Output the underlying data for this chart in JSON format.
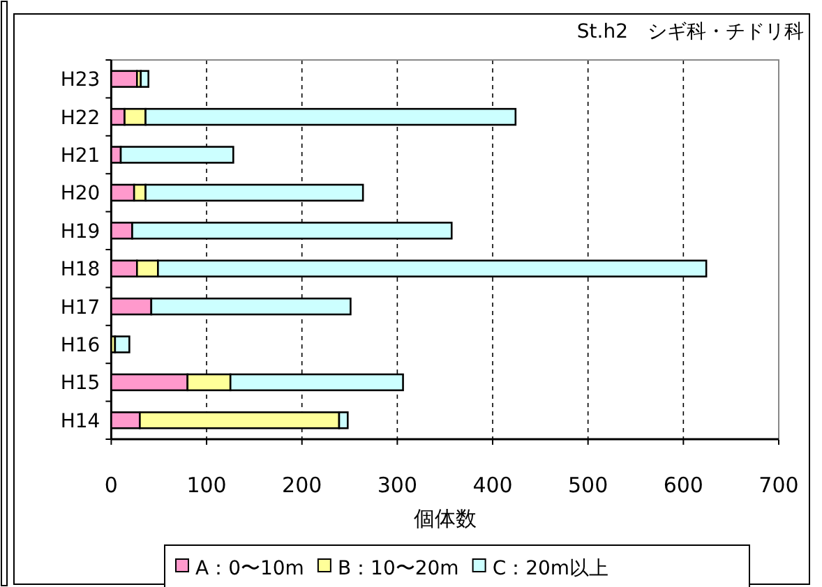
{
  "chart_data": {
    "type": "bar",
    "orientation": "horizontal",
    "stacked": true,
    "title": "St.h2　シギ科・チドリ科",
    "xlabel": "個体数",
    "categories": [
      "H23",
      "H22",
      "H21",
      "H20",
      "H19",
      "H18",
      "H17",
      "H16",
      "H15",
      "H14"
    ],
    "series": [
      {
        "name": "A：0〜10m",
        "color": "#ff99cc",
        "values": [
          27,
          14,
          10,
          24,
          22,
          27,
          42,
          null,
          80,
          30
        ]
      },
      {
        "name": "B：10〜20m",
        "color": "#ffff99",
        "values": [
          4,
          22,
          0,
          12,
          0,
          22,
          0,
          4,
          45,
          209
        ]
      },
      {
        "name": "C：20m以上",
        "color": "#ccffff",
        "values": [
          8,
          388,
          118,
          228,
          335,
          575,
          209,
          15,
          181,
          9
        ]
      }
    ],
    "xlim": [
      0,
      700
    ],
    "xticks": [
      0,
      100,
      200,
      300,
      400,
      500,
      600,
      700
    ],
    "grid": "x",
    "legend": "bottom"
  }
}
